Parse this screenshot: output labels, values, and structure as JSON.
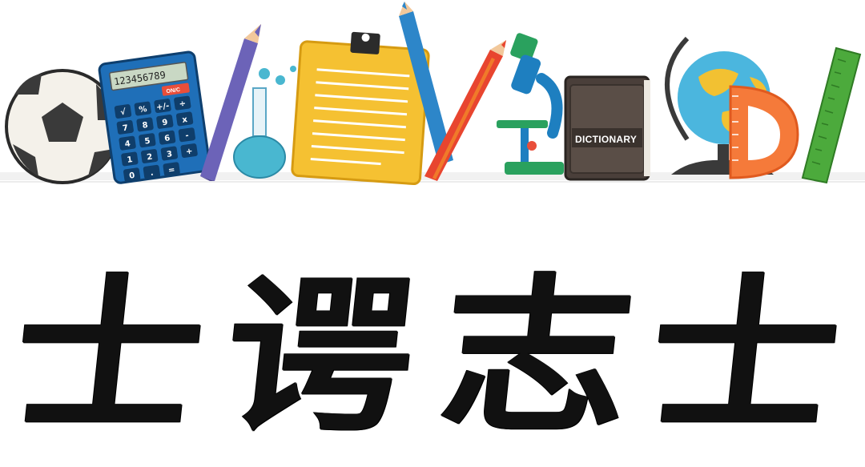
{
  "illustration": {
    "calculator_display": "123456789",
    "calculator_on_label": "ON/C",
    "calculator_keys": [
      "√",
      "%",
      "+/-",
      "÷",
      "7",
      "8",
      "9",
      "x",
      "4",
      "5",
      "6",
      "-",
      "1",
      "2",
      "3",
      "+",
      "0",
      ".",
      "="
    ],
    "dictionary_label": "DICTIONARY"
  },
  "calligraphy": {
    "characters": [
      "士",
      "谔",
      "志",
      "士"
    ]
  }
}
